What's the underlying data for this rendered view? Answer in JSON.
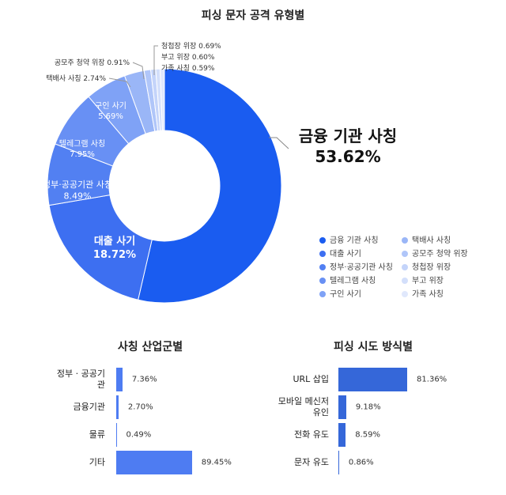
{
  "chart_data": [
    {
      "type": "pie",
      "title": "피싱 문자 공격 유형별",
      "categories": [
        "금융 기관 사칭",
        "대출 사기",
        "정부·공공기관 사칭",
        "텔레그램 사칭",
        "구인 사기",
        "택배사 사칭",
        "공모주 청약 위장",
        "청첩장 위장",
        "부고 위장",
        "가족 사칭"
      ],
      "values": [
        53.62,
        18.72,
        8.49,
        7.95,
        5.69,
        2.74,
        0.91,
        0.69,
        0.6,
        0.59
      ],
      "value_labels": [
        "53.62%",
        "18.72%",
        "8.49%",
        "7.95%",
        "5.69%",
        "2.74%",
        "0.91%",
        "0.69%",
        "0.60%",
        "0.59%"
      ],
      "colors": [
        "#1a5cf0",
        "#3d6ff1",
        "#5280f2",
        "#6890f4",
        "#7fa2f6",
        "#9ab6f7",
        "#b0c6f9",
        "#c4d4fa",
        "#d3dffb",
        "#e0e8fc"
      ]
    },
    {
      "type": "bar",
      "orientation": "horizontal",
      "title": "사칭 산업군별",
      "categories": [
        "정부 · 공공기관",
        "금융기관",
        "물류",
        "기타"
      ],
      "values": [
        7.36,
        2.7,
        0.49,
        89.45
      ],
      "value_labels": [
        "7.36%",
        "2.70%",
        "0.49%",
        "89.45%"
      ],
      "color": "#4e7cf2"
    },
    {
      "type": "bar",
      "orientation": "horizontal",
      "title": "피싱 시도 방식별",
      "categories": [
        "URL 삽입",
        "모바일 메신저 유인",
        "전화 유도",
        "문자 유도"
      ],
      "values": [
        81.36,
        9.18,
        8.59,
        0.86
      ],
      "value_labels": [
        "81.36%",
        "9.18%",
        "8.59%",
        "0.86%"
      ],
      "color": "#3567d9"
    }
  ]
}
